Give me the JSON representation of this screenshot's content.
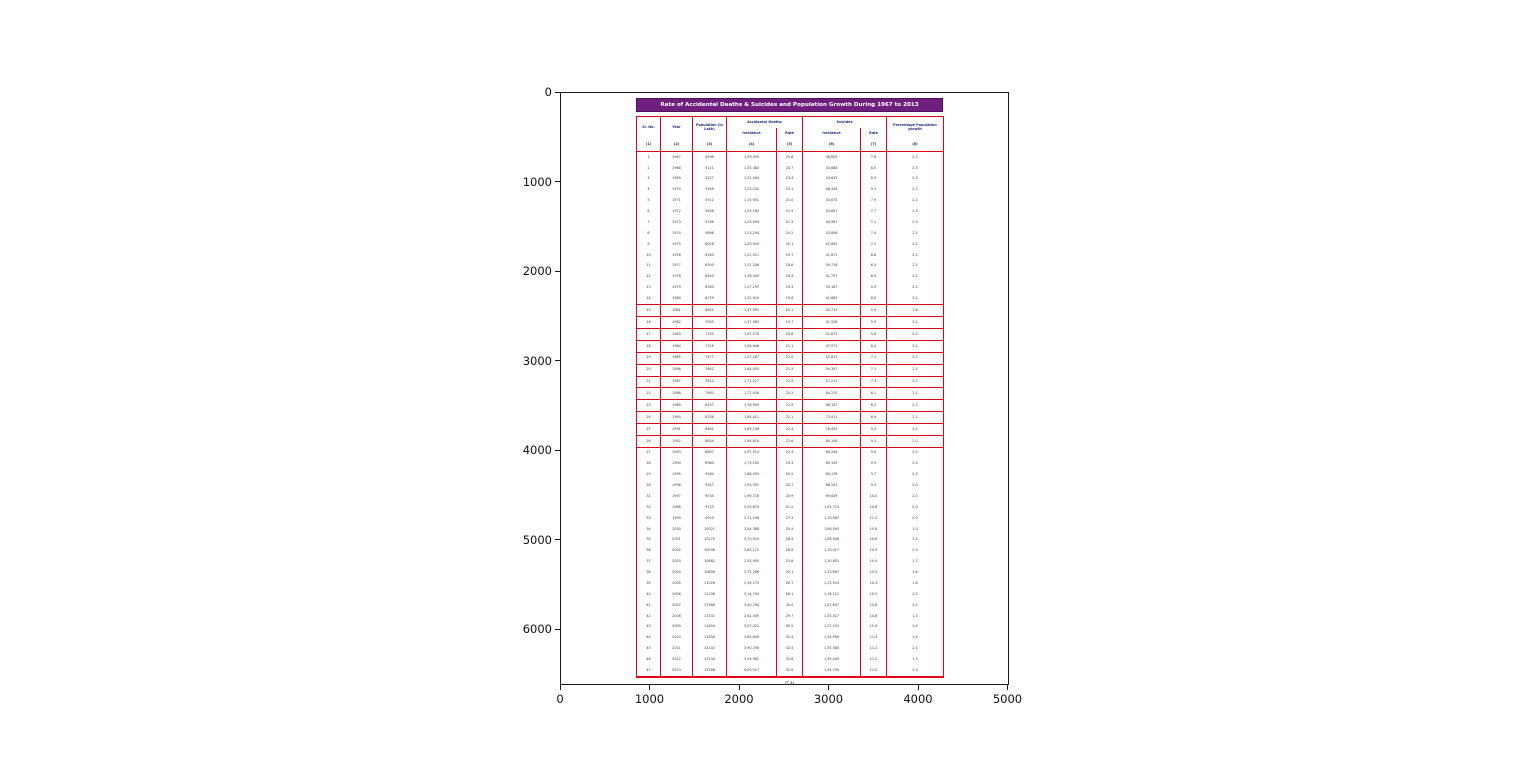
{
  "figure": {
    "background": "#ffffff",
    "x_ticks": [
      "0",
      "1000",
      "2000",
      "3000",
      "4000",
      "5000"
    ],
    "y_ticks": [
      "0",
      "1000",
      "2000",
      "3000",
      "4000",
      "5000",
      "6000"
    ]
  },
  "chart_data": {
    "type": "table",
    "title": "Rate of Accidental Deaths & Suicides and Population Growth During 1967 to 2013",
    "caption": "(T A)",
    "colors": {
      "title_bar": "#701f7e",
      "table_border": "#e2001a",
      "header_text": "#1f2d7a",
      "body_text": "#41313a"
    },
    "headers": {
      "sl": "Sl. No.",
      "year": "Year",
      "population": "Population (in Lakh)",
      "accidental_group": "Accidental Deaths",
      "suicides_group": "Suicides",
      "growth": "Percentage Population growth",
      "sub": [
        "Incidence",
        "Rate",
        "Incidence",
        "Rate"
      ]
    },
    "col_numbers": [
      "(1)",
      "(2)",
      "(3)",
      "(4)",
      "(5)",
      "(6)",
      "(7)",
      "(8)"
    ],
    "rows": [
      [
        "1",
        "1967",
        "4996",
        "1,29,092",
        "25.8",
        "38,829",
        "7.8",
        "2.2"
      ],
      [
        "2",
        "1968",
        "5111",
        "1,25,382",
        "24.7",
        "43,688",
        "8.5",
        "2.3"
      ],
      [
        "3",
        "1969",
        "5227",
        "1,22,264",
        "23.4",
        "43,633",
        "8.3",
        "2.3"
      ],
      [
        "4",
        "1970",
        "5346",
        "1,23,242",
        "23.1",
        "48,428",
        "9.1",
        "2.2"
      ],
      [
        "5",
        "1971",
        "5512",
        "1,15,901",
        "21.0",
        "43,675",
        "7.9",
        "2.2"
      ],
      [
        "6",
        "1972",
        "5638",
        "1,23,184",
        "21.9",
        "43,601",
        "7.7",
        "2.3"
      ],
      [
        "7",
        "1973",
        "5766",
        "1,23,094",
        "21.3",
        "40,967",
        "7.1",
        "2.3"
      ],
      [
        "8",
        "1974",
        "5896",
        "1,13,204",
        "19.2",
        "43,806",
        "7.4",
        "2.2"
      ],
      [
        "9",
        "1975",
        "6028",
        "1,20,916",
        "20.1",
        "42,890",
        "7.1",
        "2.2"
      ],
      [
        "10",
        "1976",
        "6163",
        "1,21,511",
        "19.7",
        "41,671",
        "6.8",
        "2.2"
      ],
      [
        "11",
        "1977",
        "6300",
        "1,17,206",
        "18.6",
        "39,718",
        "6.3",
        "2.2"
      ],
      [
        "12",
        "1978",
        "6440",
        "1,18,300",
        "18.4",
        "41,707",
        "6.5",
        "2.2"
      ],
      [
        "13",
        "1979",
        "6583",
        "1,27,297",
        "19.3",
        "39,167",
        "5.9",
        "2.2"
      ],
      [
        "14",
        "1980",
        "6729",
        "1,31,919",
        "19.6",
        "41,663",
        "6.2",
        "2.2"
      ],
      [
        "15",
        "1981",
        "6851",
        "1,37,591",
        "20.1",
        "40,715",
        "5.9",
        "1.8"
      ],
      [
        "16",
        "1982",
        "7005",
        "1,37,983",
        "19.7",
        "41,528",
        "5.9",
        "2.2"
      ],
      [
        "17",
        "1983",
        "7159",
        "1,47,570",
        "20.6",
        "41,875",
        "5.8",
        "2.2"
      ],
      [
        "18",
        "1984",
        "7316",
        "1,54,646",
        "21.1",
        "47,071",
        "6.4",
        "2.2"
      ],
      [
        "19",
        "1985",
        "7477",
        "1,57,287",
        "21.0",
        "52,811",
        "7.1",
        "2.2"
      ],
      [
        "20",
        "1986",
        "7642",
        "1,64,455",
        "21.5",
        "54,357",
        "7.1",
        "2.2"
      ],
      [
        "21",
        "1987",
        "7810",
        "1,71,217",
        "21.9",
        "57,211",
        "7.3",
        "2.2"
      ],
      [
        "22",
        "1988",
        "7982",
        "1,77,426",
        "22.2",
        "64,270",
        "8.1",
        "2.2"
      ],
      [
        "23",
        "1989",
        "8157",
        "1,78,955",
        "21.9",
        "66,107",
        "8.1",
        "2.2"
      ],
      [
        "24",
        "1990",
        "8336",
        "1,84,411",
        "22.1",
        "73,911",
        "8.9",
        "2.1"
      ],
      [
        "25",
        "1991",
        "8461",
        "1,89,106",
        "22.4",
        "78,450",
        "9.3",
        "1.5"
      ],
      [
        "26",
        "1992",
        "8634",
        "1,94,810",
        "22.6",
        "80,149",
        "9.3",
        "2.0"
      ],
      [
        "27",
        "1993",
        "8807",
        "1,97,514",
        "22.4",
        "84,244",
        "9.6",
        "2.0"
      ],
      [
        "28",
        "1994",
        "8984",
        "1,73,102",
        "19.3",
        "89,195",
        "9.9",
        "2.0"
      ],
      [
        "29",
        "1995",
        "9164",
        "1,88,003",
        "20.5",
        "89,178",
        "9.7",
        "2.0"
      ],
      [
        "30",
        "1996",
        "9347",
        "1,93,351",
        "20.7",
        "88,241",
        "9.4",
        "2.0"
      ],
      [
        "31",
        "1997",
        "9534",
        "1,99,716",
        "20.9",
        "95,829",
        "10.0",
        "2.0"
      ],
      [
        "32",
        "1998",
        "9725",
        "2,05,870",
        "21.2",
        "1,04,713",
        "10.8",
        "2.0"
      ],
      [
        "33",
        "1999",
        "9919",
        "2,71,106",
        "27.3",
        "1,10,587",
        "11.2",
        "2.0"
      ],
      [
        "34",
        "2000",
        "10021",
        "2,54,388",
        "25.4",
        "1,08,593",
        "10.8",
        "1.0"
      ],
      [
        "35",
        "2001",
        "10270",
        "2,70,910",
        "26.4",
        "1,08,506",
        "10.6",
        "2.5"
      ],
      [
        "36",
        "2002",
        "10506",
        "2,82,122",
        "26.9",
        "1,10,417",
        "10.5",
        "2.3"
      ],
      [
        "37",
        "2003",
        "10682",
        "2,53,905",
        "23.8",
        "1,10,851",
        "10.4",
        "1.7"
      ],
      [
        "38",
        "2004",
        "10856",
        "2,72,266",
        "25.1",
        "1,13,697",
        "10.5",
        "1.6"
      ],
      [
        "39",
        "2005",
        "11028",
        "2,94,175",
        "26.7",
        "1,13,914",
        "10.3",
        "1.6"
      ],
      [
        "40",
        "2006",
        "11198",
        "3,14,704",
        "28.1",
        "1,18,112",
        "10.5",
        "1.5"
      ],
      [
        "41",
        "2007",
        "11366",
        "3,40,794",
        "30.0",
        "1,22,637",
        "10.8",
        "1.5"
      ],
      [
        "42",
        "2008",
        "11531",
        "3,42,309",
        "29.7",
        "1,25,017",
        "10.8",
        "1.5"
      ],
      [
        "43",
        "2009",
        "11694",
        "3,57,021",
        "30.5",
        "1,27,151",
        "10.9",
        "1.4"
      ],
      [
        "44",
        "2010",
        "11858",
        "3,84,649",
        "32.4",
        "1,34,599",
        "11.4",
        "1.4"
      ],
      [
        "45",
        "2011",
        "12102",
        "3,90,758",
        "32.3",
        "1,35,585",
        "11.2",
        "2.1"
      ],
      [
        "46",
        "2012",
        "12134",
        "3,94,982",
        "32.6",
        "1,35,445",
        "11.2",
        "1.3"
      ],
      [
        "47",
        "2013",
        "12288",
        "4,00,517",
        "32.6",
        "1,34,799",
        "11.0",
        "1.3"
      ]
    ]
  }
}
